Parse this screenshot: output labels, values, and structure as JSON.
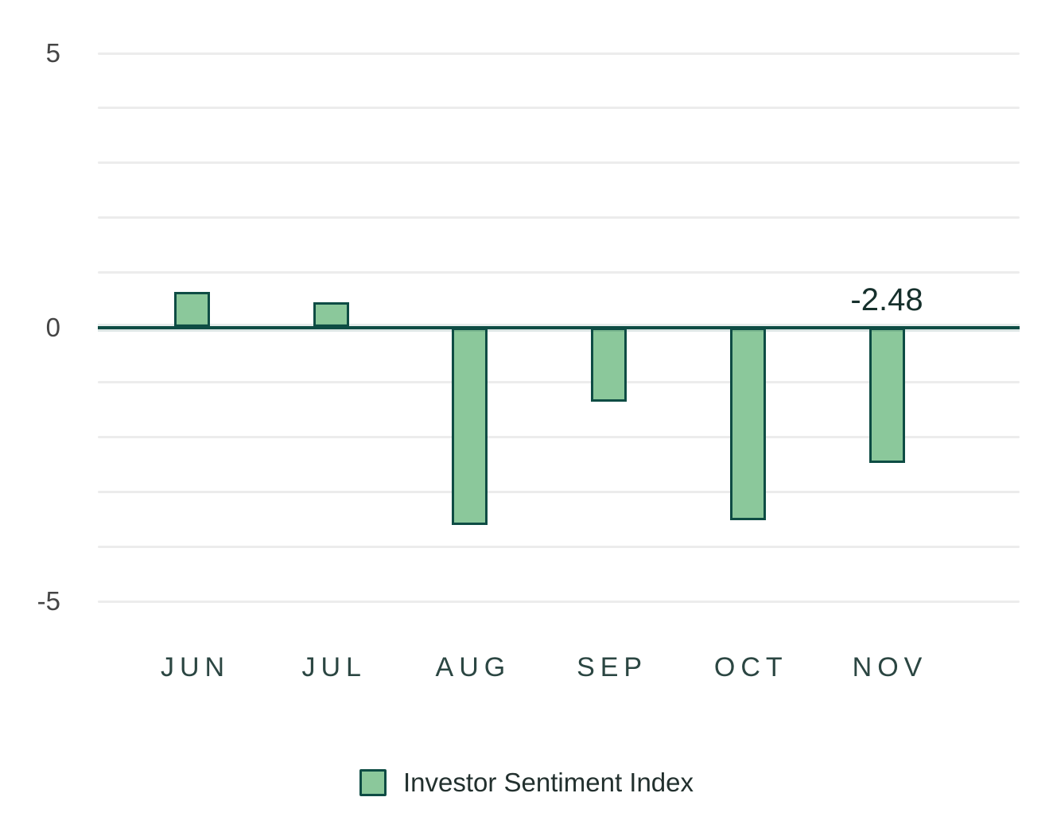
{
  "chart_data": {
    "type": "bar",
    "title": "",
    "categories": [
      "JUN",
      "JUL",
      "AUG",
      "SEP",
      "OCT",
      "NOV"
    ],
    "series": [
      {
        "name": "Investor Sentiment Index",
        "values": [
          0.65,
          0.45,
          -3.6,
          -1.36,
          -3.52,
          -2.48
        ]
      }
    ],
    "ylabel": "",
    "xlabel": "",
    "ylim": [
      -5,
      5
    ],
    "gridline_step": 1,
    "grid": true,
    "y_ticks": [
      {
        "label": "5",
        "value": 5
      },
      {
        "label": "0",
        "value": 0
      },
      {
        "label": "-5",
        "value": -5
      }
    ],
    "annotation": {
      "text": "-2.48",
      "category": "NOV"
    },
    "legend": {
      "label": "Investor Sentiment Index",
      "position": "bottom"
    },
    "colors": {
      "bar_fill": "#8bc89b",
      "bar_border": "#0e4c44",
      "zero_line": "#0e4c44",
      "gridline": "#ececec",
      "y_tick_label": "#454545",
      "x_tick_label": "#2b4642",
      "annotation_text": "#16302c",
      "legend_text": "#22302e",
      "background": "#ffffff"
    }
  }
}
